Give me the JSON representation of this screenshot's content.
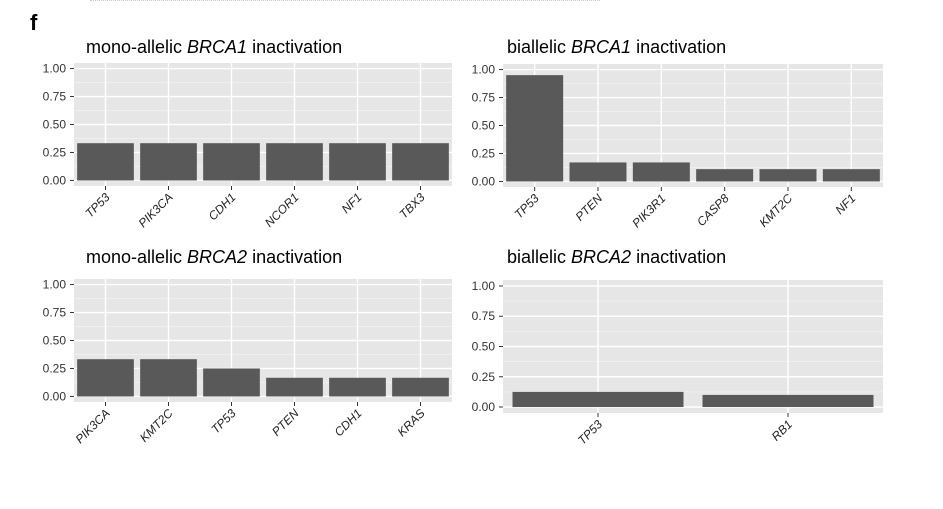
{
  "figure": {
    "panel_letter": "f"
  },
  "chart_data": [
    {
      "type": "bar",
      "title": {
        "before": "mono-allelic ",
        "gene": "BRCA1",
        "after": " inactivation"
      },
      "categories": [
        "TP53",
        "PIK3CA",
        "CDH1",
        "NCOR1",
        "NF1",
        "TBX3"
      ],
      "values": [
        0.333,
        0.333,
        0.333,
        0.333,
        0.333,
        0.333
      ],
      "ylim": [
        0,
        1.0
      ],
      "yticks": [
        0.0,
        0.25,
        0.5,
        0.75,
        1.0
      ],
      "ytick_labels": [
        "0.00",
        "0.25",
        "0.50",
        "0.75",
        "1.00"
      ],
      "grid": true,
      "bar_color": "#595959"
    },
    {
      "type": "bar",
      "title": {
        "before": "biallelic ",
        "gene": "BRCA1",
        "after": " inactivation"
      },
      "categories": [
        "TP53",
        "PTEN",
        "PIK3R1",
        "CASP8",
        "KMT2C",
        "NF1"
      ],
      "values": [
        0.95,
        0.17,
        0.17,
        0.11,
        0.11,
        0.11
      ],
      "ylim": [
        0,
        1.0
      ],
      "yticks": [
        0.0,
        0.25,
        0.5,
        0.75,
        1.0
      ],
      "ytick_labels": [
        "0.00",
        "0.25",
        "0.50",
        "0.75",
        "1.00"
      ],
      "grid": true,
      "bar_color": "#595959"
    },
    {
      "type": "bar",
      "title": {
        "before": "mono-allelic ",
        "gene": "BRCA2",
        "after": "  inactivation"
      },
      "categories": [
        "PIK3CA",
        "KMT2C",
        "TP53",
        "PTEN",
        "CDH1",
        "KRAS"
      ],
      "values": [
        0.333,
        0.333,
        0.25,
        0.167,
        0.167,
        0.167
      ],
      "ylim": [
        0,
        1.0
      ],
      "yticks": [
        0.0,
        0.25,
        0.5,
        0.75,
        1.0
      ],
      "ytick_labels": [
        "0.00",
        "0.25",
        "0.50",
        "0.75",
        "1.00"
      ],
      "grid": true,
      "bar_color": "#595959"
    },
    {
      "type": "bar",
      "title": {
        "before": "biallelic ",
        "gene": "BRCA2",
        "after": " inactivation"
      },
      "categories": [
        "TP53",
        "RB1"
      ],
      "values": [
        0.125,
        0.1
      ],
      "ylim": [
        0,
        1.0
      ],
      "yticks": [
        0.0,
        0.25,
        0.5,
        0.75,
        1.0
      ],
      "ytick_labels": [
        "0.00",
        "0.25",
        "0.50",
        "0.75",
        "1.00"
      ],
      "grid": true,
      "bar_color": "#595959"
    }
  ]
}
